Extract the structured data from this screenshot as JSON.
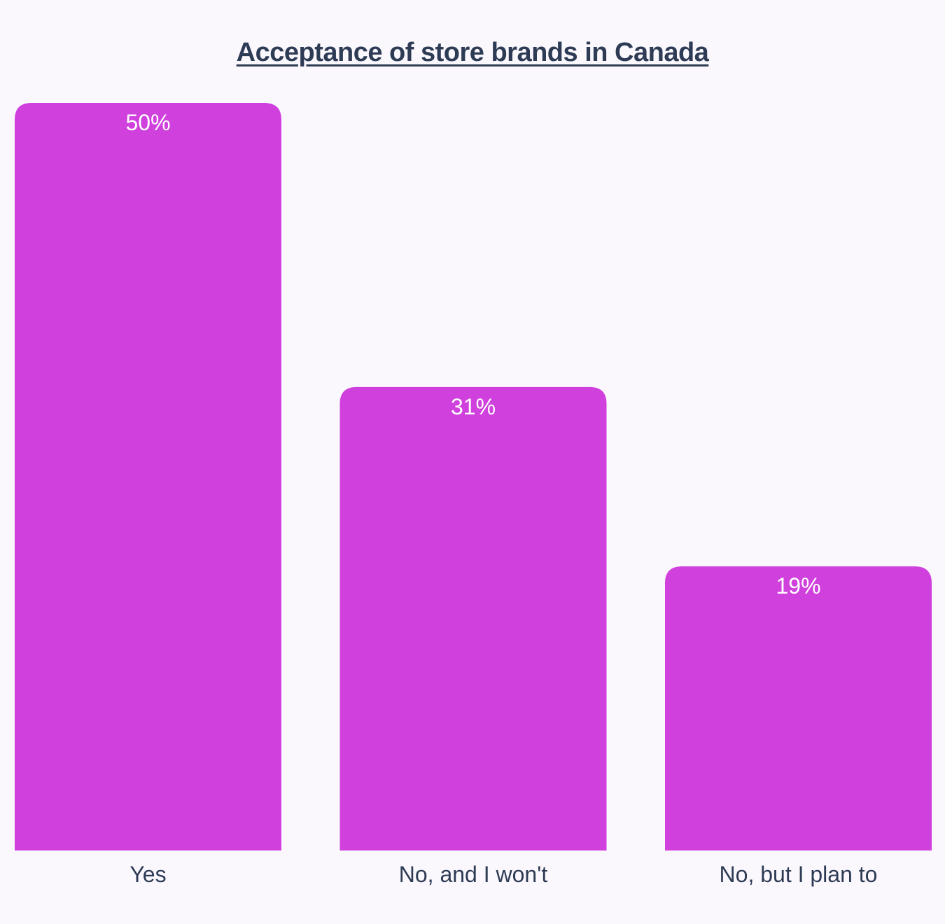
{
  "chart_data": {
    "type": "bar",
    "title": "Acceptance of store brands in Canada",
    "categories": [
      "Yes",
      "No, and I won't",
      "No, but I plan to"
    ],
    "values": [
      50,
      31,
      19
    ],
    "data_labels": [
      "50%",
      "31%",
      "19%"
    ],
    "xlabel": "",
    "ylabel": "",
    "ylim": [
      0,
      50
    ],
    "grid": false,
    "legend": "none",
    "colors": {
      "bar": "#cf40dd",
      "bar_label": "#ffffff",
      "text": "#2e3b55",
      "background": "#fbf8fd"
    }
  }
}
